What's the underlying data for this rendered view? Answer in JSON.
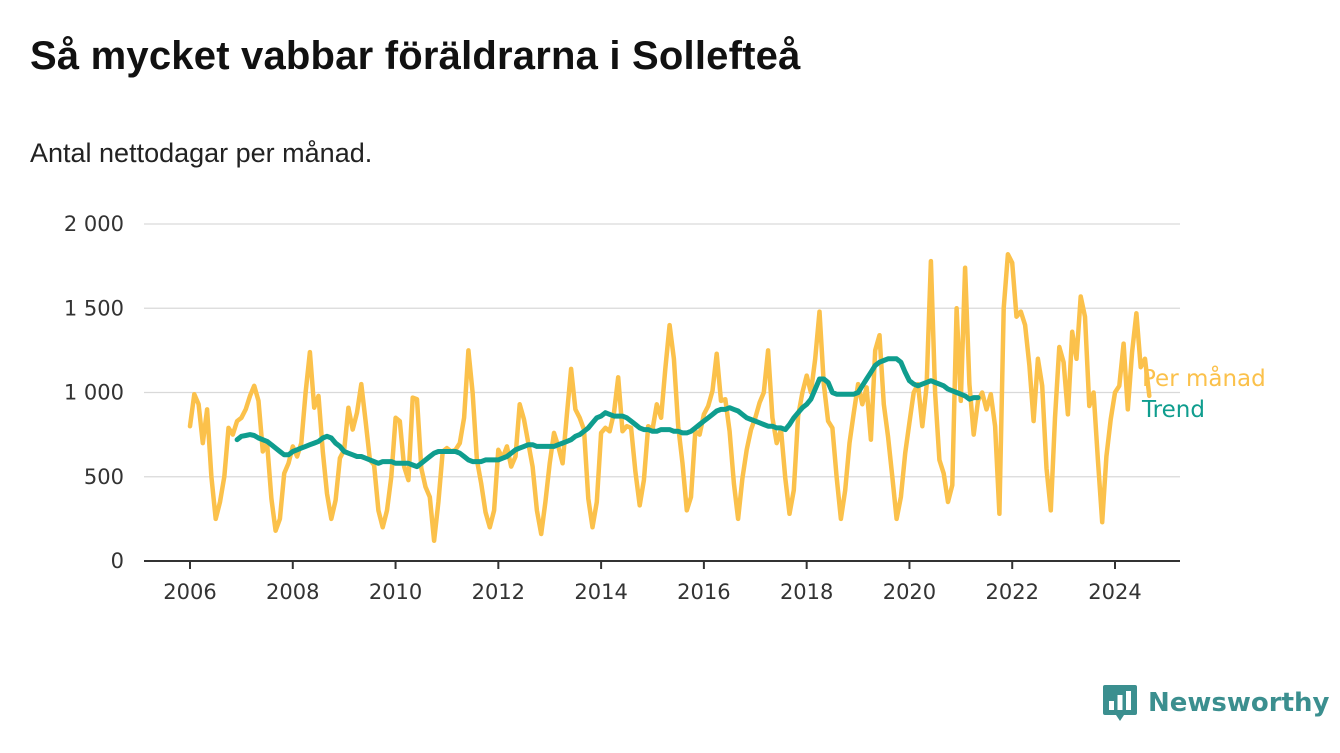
{
  "title": "Så mycket vabbar föräldrarna i Sollefteå",
  "subtitle": "Antal nettodagar per månad.",
  "brand": {
    "name": "Newsworthy",
    "icon": "bar-chart-speech-bubble-icon",
    "color": "#3b8f8f"
  },
  "colors": {
    "monthly": "#fbc14b",
    "trend": "#0f9d8e",
    "grid": "#d9d9d9"
  },
  "chart_data": {
    "type": "line",
    "xlim": [
      2005,
      2025
    ],
    "ylim": [
      0,
      2000
    ],
    "y_ticks": [
      0,
      500,
      1000,
      1500,
      2000
    ],
    "y_tick_labels": [
      "0",
      "500",
      "1 000",
      "1 500",
      "2 000"
    ],
    "x_ticks": [
      2006,
      2008,
      2010,
      2012,
      2014,
      2016,
      2018,
      2020,
      2022,
      2024
    ],
    "x_tick_labels": [
      "2006",
      "2008",
      "2010",
      "2012",
      "2014",
      "2016",
      "2018",
      "2020",
      "2022",
      "2024"
    ],
    "grid": true,
    "legend": "direct-labels-right",
    "series": [
      {
        "name": "Per månad",
        "start": [
          2006,
          1
        ],
        "values": [
          800,
          990,
          930,
          700,
          900,
          500,
          250,
          350,
          500,
          790,
          750,
          830,
          850,
          900,
          980,
          1040,
          950,
          650,
          700,
          370,
          180,
          250,
          520,
          580,
          680,
          620,
          700,
          1000,
          1240,
          910,
          980,
          650,
          400,
          250,
          360,
          610,
          660,
          910,
          780,
          880,
          1050,
          830,
          600,
          570,
          300,
          200,
          300,
          500,
          850,
          830,
          560,
          480,
          970,
          960,
          550,
          440,
          380,
          120,
          350,
          650,
          670,
          650,
          660,
          700,
          850,
          1250,
          1000,
          600,
          460,
          290,
          200,
          300,
          660,
          610,
          680,
          560,
          620,
          930,
          840,
          700,
          560,
          300,
          160,
          350,
          580,
          760,
          680,
          580,
          870,
          1140,
          900,
          850,
          780,
          370,
          200,
          350,
          760,
          790,
          770,
          880,
          1090,
          770,
          800,
          790,
          530,
          330,
          480,
          800,
          780,
          930,
          850,
          1140,
          1400,
          1200,
          800,
          580,
          300,
          380,
          770,
          750,
          870,
          920,
          1010,
          1230,
          950,
          960,
          770,
          460,
          250,
          490,
          660,
          780,
          850,
          940,
          1000,
          1250,
          850,
          700,
          780,
          490,
          280,
          420,
          860,
          1000,
          1100,
          1000,
          1200,
          1480,
          1050,
          830,
          790,
          500,
          250,
          420,
          700,
          880,
          1050,
          930,
          1030,
          720,
          1250,
          1340,
          930,
          740,
          500,
          250,
          380,
          640,
          820,
          1000,
          1050,
          800,
          1040,
          1780,
          1000,
          600,
          520,
          350,
          450,
          1500,
          950,
          1740,
          1050,
          750,
          950,
          1000,
          900,
          990,
          800,
          280,
          1500,
          1820,
          1770,
          1450,
          1480,
          1400,
          1160,
          830,
          1200,
          1040,
          550,
          300,
          850,
          1270,
          1180,
          870,
          1360,
          1200,
          1570,
          1450,
          920,
          1000,
          600,
          230,
          620,
          840,
          1000,
          1040,
          1290,
          900,
          1240,
          1470,
          1150,
          1200,
          980
        ]
      },
      {
        "name": "Trend",
        "start": [
          2006,
          12
        ],
        "values": [
          720,
          740,
          745,
          750,
          745,
          730,
          720,
          710,
          690,
          670,
          650,
          630,
          630,
          650,
          660,
          670,
          680,
          690,
          700,
          710,
          730,
          740,
          730,
          700,
          680,
          650,
          640,
          630,
          620,
          620,
          610,
          600,
          590,
          580,
          590,
          590,
          590,
          580,
          580,
          580,
          580,
          570,
          560,
          580,
          600,
          620,
          640,
          650,
          650,
          650,
          650,
          650,
          640,
          620,
          600,
          590,
          590,
          590,
          600,
          600,
          600,
          600,
          610,
          620,
          640,
          660,
          670,
          680,
          690,
          690,
          680,
          680,
          680,
          680,
          680,
          690,
          700,
          710,
          720,
          740,
          750,
          770,
          790,
          820,
          850,
          860,
          880,
          870,
          860,
          860,
          860,
          850,
          830,
          810,
          790,
          780,
          780,
          770,
          770,
          780,
          780,
          780,
          770,
          770,
          760,
          760,
          770,
          790,
          810,
          830,
          850,
          870,
          890,
          900,
          900,
          910,
          900,
          890,
          870,
          850,
          840,
          830,
          820,
          810,
          800,
          800,
          790,
          790,
          780,
          810,
          850,
          880,
          910,
          930,
          960,
          1020,
          1080,
          1080,
          1060,
          1000,
          990,
          990,
          990,
          990,
          990,
          1000,
          1040,
          1080,
          1120,
          1160,
          1180,
          1190,
          1200,
          1200,
          1200,
          1180,
          1120,
          1070,
          1050,
          1040,
          1050,
          1060,
          1070,
          1060,
          1050,
          1040,
          1020,
          1010,
          1000,
          990,
          980,
          960,
          970,
          970
        ]
      }
    ]
  }
}
